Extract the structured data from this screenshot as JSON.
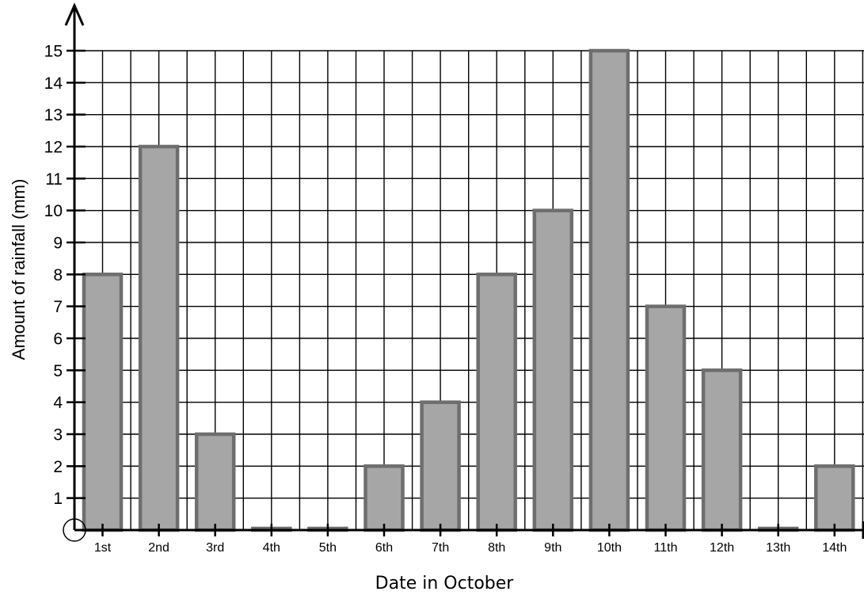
{
  "chart_data": {
    "type": "bar",
    "title": "",
    "xlabel": "Date in October",
    "ylabel": "Amount of rainfall (mm)",
    "categories": [
      "1st",
      "2nd",
      "3rd",
      "4th",
      "5th",
      "6th",
      "7th",
      "8th",
      "9th",
      "10th",
      "11th",
      "12th",
      "13th",
      "14th"
    ],
    "values": [
      8,
      12,
      3,
      0,
      0,
      2,
      4,
      8,
      10,
      15,
      7,
      5,
      0,
      2
    ],
    "ylim": [
      0,
      15
    ],
    "yticks": [
      "1",
      "2",
      "3",
      "4",
      "5",
      "6",
      "7",
      "8",
      "9",
      "10",
      "11",
      "12",
      "13",
      "14",
      "15"
    ],
    "grid": true,
    "legend": "none",
    "colors": {
      "bar_fill": "#a6a6a6",
      "bar_edge": "#6e6e6e",
      "grid": "#000000"
    }
  }
}
